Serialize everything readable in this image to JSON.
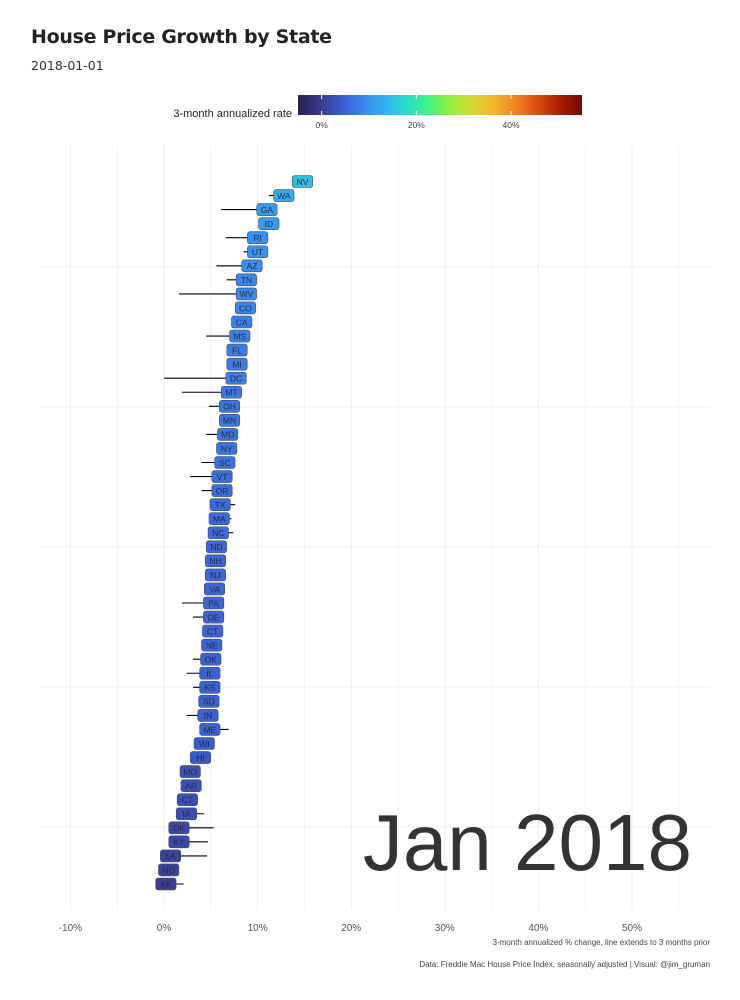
{
  "title": "House Price Growth by State",
  "subtitle": "2018-01-01",
  "legend": {
    "title": "3-month annualized rate",
    "ticks": [
      0,
      20,
      40
    ],
    "tick_labels": [
      "0%",
      "20%",
      "40%"
    ],
    "range": [
      -5,
      55
    ]
  },
  "chart_data": {
    "type": "scatter",
    "title": "House Price Growth by State",
    "subtitle": "2018-01-01",
    "xlabel": "3-month annualized % change, line extends to 3 months prior",
    "ylabel": "",
    "xlim": [
      -10.5,
      58
    ],
    "x_ticks": [
      -10,
      0,
      10,
      20,
      30,
      40,
      50
    ],
    "x_tick_labels": [
      "-10%",
      "0%",
      "10%",
      "20%",
      "30%",
      "40%",
      "50%"
    ],
    "grid": true,
    "legend_position": "top",
    "big_label": "Jan 2018",
    "caption": "Data: Freddie Mac House Price Index, seasonally adjusted | Visual: @jim_gruman",
    "points": [
      {
        "state": "NV",
        "value": 14.8,
        "prior": 14.8
      },
      {
        "state": "WA",
        "value": 12.8,
        "prior": 11.2
      },
      {
        "state": "GA",
        "value": 11.0,
        "prior": 6.1
      },
      {
        "state": "ID",
        "value": 11.2,
        "prior": 10.5
      },
      {
        "state": "RI",
        "value": 10.0,
        "prior": 6.6
      },
      {
        "state": "UT",
        "value": 10.0,
        "prior": 8.5
      },
      {
        "state": "AZ",
        "value": 9.4,
        "prior": 5.6
      },
      {
        "state": "TN",
        "value": 8.8,
        "prior": 6.7
      },
      {
        "state": "WV",
        "value": 8.8,
        "prior": 1.6
      },
      {
        "state": "CO",
        "value": 8.7,
        "prior": 8.7
      },
      {
        "state": "CA",
        "value": 8.3,
        "prior": 8.3
      },
      {
        "state": "MS",
        "value": 8.1,
        "prior": 4.5
      },
      {
        "state": "FL",
        "value": 7.8,
        "prior": 7.8
      },
      {
        "state": "MI",
        "value": 7.8,
        "prior": 7.8
      },
      {
        "state": "DC",
        "value": 7.7,
        "prior": 0.0
      },
      {
        "state": "MT",
        "value": 7.2,
        "prior": 1.9
      },
      {
        "state": "OH",
        "value": 7.0,
        "prior": 4.8
      },
      {
        "state": "MN",
        "value": 7.0,
        "prior": 7.0
      },
      {
        "state": "MD",
        "value": 6.8,
        "prior": 4.5
      },
      {
        "state": "NY",
        "value": 6.7,
        "prior": 6.7
      },
      {
        "state": "SC",
        "value": 6.5,
        "prior": 4.0
      },
      {
        "state": "VT",
        "value": 6.2,
        "prior": 2.8
      },
      {
        "state": "OR",
        "value": 6.2,
        "prior": 4.0
      },
      {
        "state": "TX",
        "value": 6.0,
        "prior": 7.6
      },
      {
        "state": "MA",
        "value": 5.9,
        "prior": 7.2
      },
      {
        "state": "NC",
        "value": 5.8,
        "prior": 7.4
      },
      {
        "state": "ND",
        "value": 5.6,
        "prior": 5.6
      },
      {
        "state": "NH",
        "value": 5.5,
        "prior": 5.5
      },
      {
        "state": "NJ",
        "value": 5.5,
        "prior": 5.5
      },
      {
        "state": "VA",
        "value": 5.4,
        "prior": 5.4
      },
      {
        "state": "PA",
        "value": 5.3,
        "prior": 1.9
      },
      {
        "state": "DE",
        "value": 5.3,
        "prior": 3.1
      },
      {
        "state": "CT",
        "value": 5.2,
        "prior": 4.2
      },
      {
        "state": "NE",
        "value": 5.1,
        "prior": 5.1
      },
      {
        "state": "OK",
        "value": 5.0,
        "prior": 3.1
      },
      {
        "state": "IL",
        "value": 4.9,
        "prior": 2.4
      },
      {
        "state": "KS",
        "value": 4.9,
        "prior": 3.1
      },
      {
        "state": "SD",
        "value": 4.8,
        "prior": 4.8
      },
      {
        "state": "IN",
        "value": 4.7,
        "prior": 2.4
      },
      {
        "state": "ME",
        "value": 4.9,
        "prior": 6.9
      },
      {
        "state": "WI",
        "value": 4.3,
        "prior": 4.3
      },
      {
        "state": "HI",
        "value": 3.9,
        "prior": 3.9
      },
      {
        "state": "MO",
        "value": 2.8,
        "prior": 2.8
      },
      {
        "state": "AR",
        "value": 2.9,
        "prior": 2.9
      },
      {
        "state": "CT",
        "value": 2.5,
        "prior": 2.5
      },
      {
        "state": "IA",
        "value": 2.4,
        "prior": 4.3
      },
      {
        "state": "OK",
        "value": 1.6,
        "prior": 5.3
      },
      {
        "state": "KY",
        "value": 1.6,
        "prior": 4.7
      },
      {
        "state": "LA",
        "value": 0.7,
        "prior": 4.6
      },
      {
        "state": "ND",
        "value": 0.5,
        "prior": 0.5
      },
      {
        "state": "AK",
        "value": 0.2,
        "prior": 2.1
      }
    ]
  },
  "colors": {
    "background": "#ffffff",
    "grid": "#ececec",
    "label_border": "#4a4a4a",
    "segment": "#000000",
    "text": "#222222",
    "axis_text": "#555555",
    "big_label": "#333333",
    "palette": [
      "#2d1f52",
      "#3a3a8a",
      "#3a5cd0",
      "#3b86f0",
      "#2fb3f0",
      "#28dfc4",
      "#43f582",
      "#9aee3c",
      "#d6d932",
      "#f3b52a",
      "#f0801f",
      "#d94a10",
      "#a81d04",
      "#6e0a02"
    ]
  }
}
